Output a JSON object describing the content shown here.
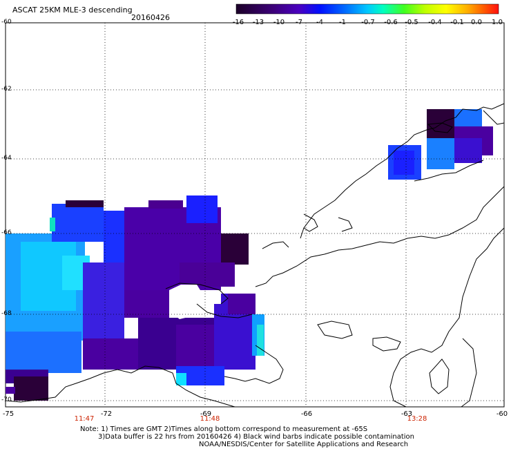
{
  "header": {
    "title": "ASCAT 25KM MLE-3 descending",
    "date": "20160426"
  },
  "colorbar": {
    "labels": [
      "-16",
      "-13",
      "-10",
      "-7",
      "-4",
      "-1",
      "-0.7",
      "-0.6",
      "-0.5",
      "-0.4",
      "-0.1",
      "0.0",
      "1.0"
    ],
    "colors": [
      "#2a0038",
      "#5a0090",
      "#3010e0",
      "#1060ff",
      "#1ca0ff",
      "#10e0ff",
      "#20ff90",
      "#40ff20",
      "#a0ff00",
      "#ffff00",
      "#ffb000",
      "#ff6000",
      "#ff1010"
    ]
  },
  "axes": {
    "lat_labels": [
      "-60",
      "-62",
      "-64",
      "-66",
      "-68",
      "-70"
    ],
    "lon_labels": [
      "-75",
      "-72",
      "-69",
      "-66",
      "-63",
      "-60"
    ],
    "time_labels": [
      "11:47",
      "11:48",
      "13:28"
    ]
  },
  "notes": {
    "line1": "Note: 1) Times are GMT 2)Times along bottom correspond to measurement at -65S",
    "line2": "3)Data buffer is 22 hrs from 20160426 4) Black wind barbs indicate possible contamination",
    "line3": "NOAA/NESDIS/Center for Satellite Applications and Research"
  },
  "legend_colors": {
    "dark_purple": "#2a0038",
    "purple": "#4a00a0",
    "blue": "#1a30ff",
    "light_blue": "#1aa0ff",
    "cyan": "#10e0ff"
  }
}
